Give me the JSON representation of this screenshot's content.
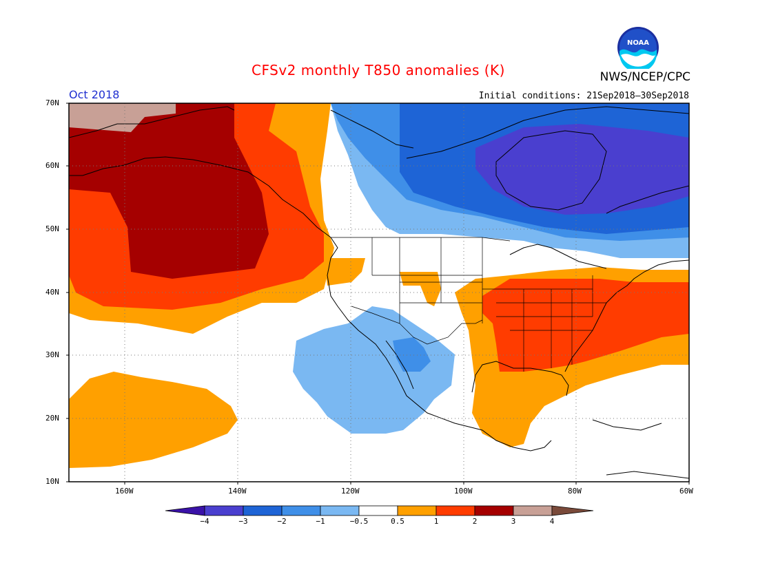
{
  "title": "CFSv2 monthly T850 anomalies (K)",
  "agency": "NWS/NCEP/CPC",
  "logo_text": "NOAA",
  "month": "Oct 2018",
  "initial_conditions": "Initial conditions: 21Sep2018–30Sep2018",
  "lat_labels": [
    "70N",
    "60N",
    "50N",
    "40N",
    "30N",
    "20N",
    "10N"
  ],
  "lon_labels": [
    "160W",
    "140W",
    "120W",
    "100W",
    "80W",
    "60W"
  ],
  "colorbar": {
    "labels": [
      "−4",
      "−3",
      "−2",
      "−1",
      "−0.5",
      "0.5",
      "1",
      "2",
      "3",
      "4"
    ],
    "colors": [
      "#3a12a8",
      "#4a3fcf",
      "#1e64d6",
      "#3f8fe8",
      "#7ab8f2",
      "#ffffff",
      "#ffa000",
      "#ff3c00",
      "#a50000",
      "#c8a096",
      "#7a4a3a"
    ]
  },
  "colors": {
    "title": "#ff0000",
    "month": "#1f2fd0",
    "land_outline": "#000000",
    "grid": "#777777"
  }
}
